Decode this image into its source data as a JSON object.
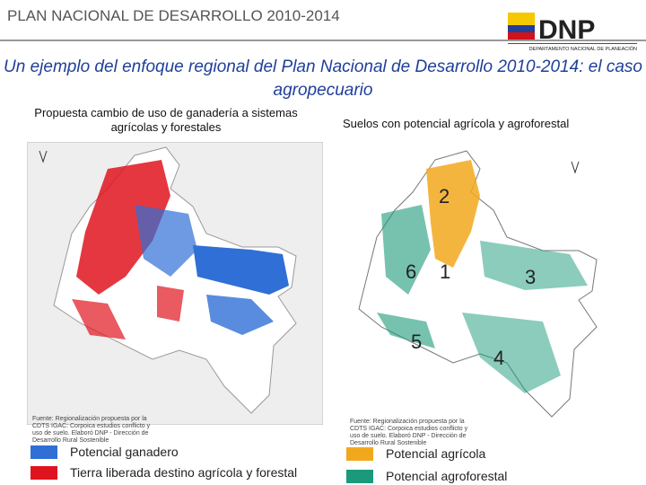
{
  "header": {
    "title": "PLAN NACIONAL DE DESARROLLO 2010-2014",
    "logo": "DNP",
    "logo_subtitle": "DEPARTAMENTO NACIONAL DE PLANEACIÓN"
  },
  "subtitle": "Un ejemplo del enfoque regional del Plan Nacional de Desarrollo 2010-2014: el caso agropecuario",
  "left_panel": {
    "caption": "Propuesta cambio de uso de ganadería a sistemas agrícolas y forestales",
    "source": "Fuente: Regionalización propuesta por la CDTS IGAC: Corpoica estudios conflicto y uso de suelo. Elaboró DNP - Dirección de Desarrollo Rural Sostenible",
    "legend": [
      "Potencial ganadero",
      "Tierra liberada destino agrícola y forestal"
    ]
  },
  "right_panel": {
    "caption": "Suelos con potencial agrícola y agroforestal",
    "source": "Fuente: Regionalización propuesta por la CDTS IGAC: Corpoica estudios conflicto y uso de suelo. Elaboró DNP - Dirección de Desarrollo Rural Sostenible",
    "region_labels": [
      "2",
      "6",
      "1",
      "3",
      "5",
      "4"
    ],
    "legend": [
      "Potencial agrícola",
      "Potencial agroforestal"
    ]
  }
}
